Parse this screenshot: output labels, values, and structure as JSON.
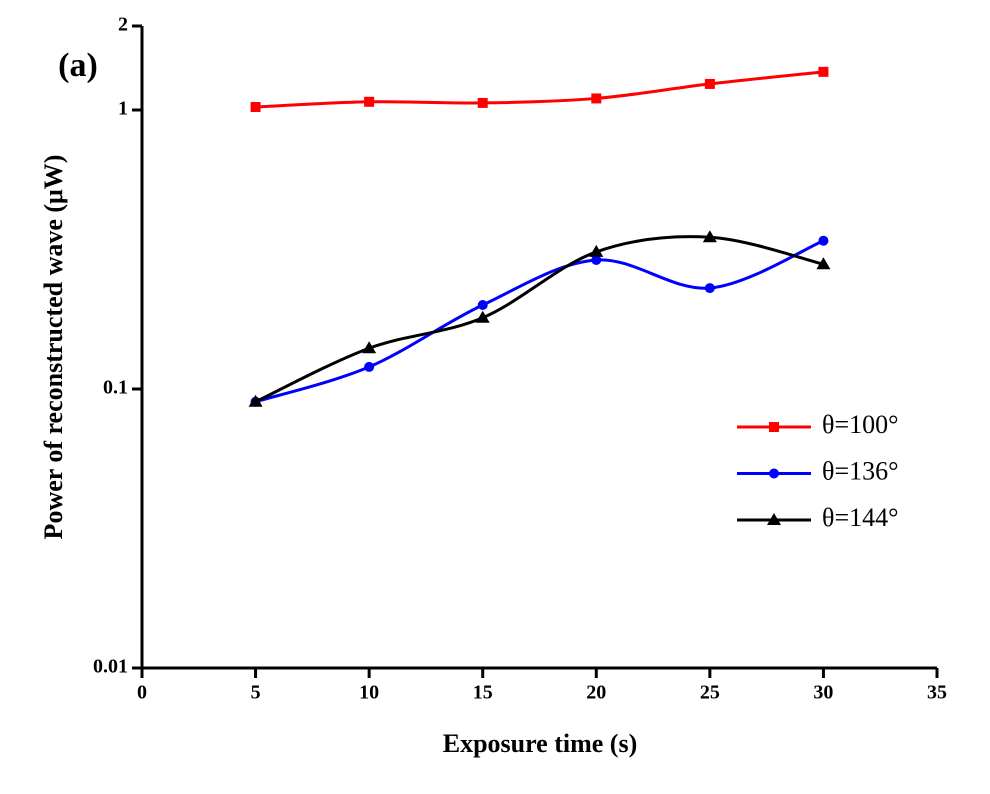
{
  "chart_data": {
    "type": "line",
    "annotation": "(a)",
    "x_label": "Exposure time (s)",
    "y_label": "Power of reconstructed wave (μW)",
    "x": [
      5,
      10,
      15,
      20,
      25,
      30
    ],
    "series": [
      {
        "name": "θ=100°",
        "color": "#ff0000",
        "marker": "square",
        "values": [
          1.025,
          1.07,
          1.06,
          1.1,
          1.24,
          1.37
        ]
      },
      {
        "name": "θ=136°",
        "color": "#0000ff",
        "marker": "circle",
        "values": [
          0.09,
          0.12,
          0.2,
          0.29,
          0.23,
          0.34
        ]
      },
      {
        "name": "θ=144°",
        "color": "#000000",
        "marker": "triangle",
        "values": [
          0.09,
          0.14,
          0.18,
          0.31,
          0.35,
          0.28
        ]
      }
    ],
    "xlim": [
      0,
      35
    ],
    "xticks": [
      0,
      5,
      10,
      15,
      20,
      25,
      30,
      35
    ],
    "ylim": [
      0.01,
      2
    ],
    "yticks": [
      0.01,
      0.1,
      1,
      2
    ],
    "y_scale": "log",
    "legend": "right"
  }
}
